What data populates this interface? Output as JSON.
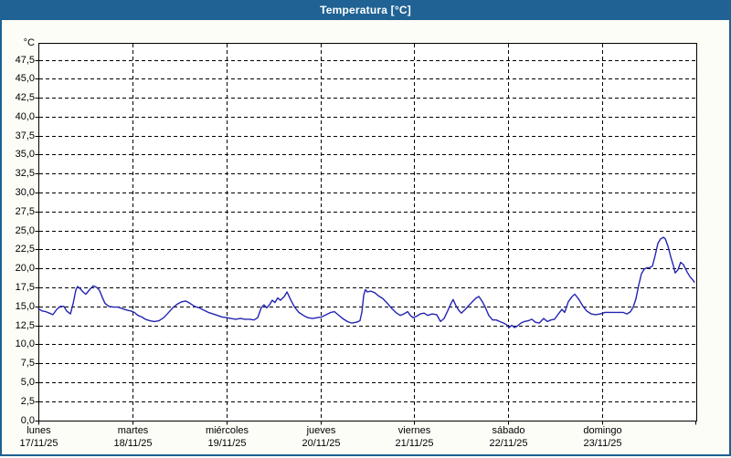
{
  "window": {
    "title": "Temperatura [°C]",
    "titlebar_color": "#1f6293",
    "border_color": "#1d6191",
    "background": "#fdfdf8"
  },
  "chart_data": {
    "type": "line",
    "title": "Temperatura [°C]",
    "unit_label": "°C",
    "legend": "none",
    "grid": "dashed",
    "plot_background": "#ffffff",
    "line_color": "#2424b2",
    "y_axis": {
      "min": 0,
      "max": 49.7,
      "tick_step": 2.5,
      "tick_labels_top_to_bottom": [
        "47,5",
        "45,0",
        "42,5",
        "40,0",
        "37,5",
        "35,0",
        "32,5",
        "30,0",
        "27,5",
        "25,0",
        "22,5",
        "20,0",
        "17,5",
        "15,0",
        "12,5",
        "10,0",
        "7,5",
        "5,0",
        "2,5",
        "0,0"
      ]
    },
    "x_axis": {
      "range_hours": [
        0,
        168
      ],
      "days": [
        {
          "name": "lunes",
          "date": "17/11/25"
        },
        {
          "name": "martes",
          "date": "18/11/25"
        },
        {
          "name": "miércoles",
          "date": "19/11/25"
        },
        {
          "name": "jueves",
          "date": "20/11/25"
        },
        {
          "name": "viernes",
          "date": "21/11/25"
        },
        {
          "name": "sábado",
          "date": "22/11/25"
        },
        {
          "name": "domingo",
          "date": "23/11/25"
        }
      ]
    },
    "series": [
      {
        "name": "Temperatura",
        "unit": "°C",
        "points_hour_temp": [
          [
            0.0,
            14.7
          ],
          [
            0.9,
            14.4
          ],
          [
            1.9,
            14.3
          ],
          [
            2.8,
            14.1
          ],
          [
            3.7,
            13.9
          ],
          [
            4.7,
            14.6
          ],
          [
            5.6,
            15.0
          ],
          [
            6.5,
            15.0
          ],
          [
            7.2,
            14.4
          ],
          [
            8.2,
            14.0
          ],
          [
            8.9,
            15.4
          ],
          [
            9.6,
            17.2
          ],
          [
            10.0,
            17.6
          ],
          [
            10.7,
            17.3
          ],
          [
            11.4,
            16.9
          ],
          [
            12.1,
            16.6
          ],
          [
            13.1,
            17.2
          ],
          [
            14.0,
            17.7
          ],
          [
            14.9,
            17.5
          ],
          [
            15.6,
            17.1
          ],
          [
            16.3,
            16.2
          ],
          [
            17.0,
            15.4
          ],
          [
            18.0,
            15.0
          ],
          [
            19.1,
            14.9
          ],
          [
            20.3,
            14.9
          ],
          [
            21.5,
            14.7
          ],
          [
            22.6,
            14.5
          ],
          [
            23.6,
            14.4
          ],
          [
            24.5,
            14.2
          ],
          [
            25.4,
            13.8
          ],
          [
            26.4,
            13.6
          ],
          [
            27.3,
            13.3
          ],
          [
            28.5,
            13.1
          ],
          [
            29.6,
            13.0
          ],
          [
            30.8,
            13.1
          ],
          [
            32.0,
            13.5
          ],
          [
            33.1,
            14.1
          ],
          [
            34.3,
            14.8
          ],
          [
            35.5,
            15.3
          ],
          [
            36.6,
            15.6
          ],
          [
            37.6,
            15.7
          ],
          [
            38.7,
            15.4
          ],
          [
            39.9,
            15.0
          ],
          [
            41.1,
            14.8
          ],
          [
            42.2,
            14.5
          ],
          [
            43.4,
            14.2
          ],
          [
            44.6,
            14.0
          ],
          [
            45.7,
            13.8
          ],
          [
            46.9,
            13.6
          ],
          [
            48.1,
            13.5
          ],
          [
            49.2,
            13.4
          ],
          [
            50.4,
            13.3
          ],
          [
            51.6,
            13.4
          ],
          [
            52.7,
            13.3
          ],
          [
            53.9,
            13.3
          ],
          [
            55.1,
            13.2
          ],
          [
            56.0,
            13.5
          ],
          [
            56.9,
            14.8
          ],
          [
            57.6,
            15.2
          ],
          [
            58.3,
            14.8
          ],
          [
            59.0,
            15.2
          ],
          [
            59.7,
            15.8
          ],
          [
            60.4,
            15.5
          ],
          [
            61.1,
            16.1
          ],
          [
            61.8,
            15.8
          ],
          [
            62.8,
            16.3
          ],
          [
            63.5,
            16.9
          ],
          [
            64.4,
            15.9
          ],
          [
            65.3,
            15.0
          ],
          [
            66.5,
            14.2
          ],
          [
            67.7,
            13.8
          ],
          [
            68.8,
            13.5
          ],
          [
            70.0,
            13.4
          ],
          [
            71.2,
            13.5
          ],
          [
            72.3,
            13.6
          ],
          [
            73.5,
            13.9
          ],
          [
            74.7,
            14.2
          ],
          [
            75.6,
            14.3
          ],
          [
            76.5,
            13.9
          ],
          [
            77.7,
            13.4
          ],
          [
            78.9,
            13.0
          ],
          [
            80.0,
            12.8
          ],
          [
            81.2,
            12.9
          ],
          [
            82.1,
            13.1
          ],
          [
            82.6,
            14.2
          ],
          [
            83.1,
            16.5
          ],
          [
            83.5,
            17.2
          ],
          [
            84.0,
            16.9
          ],
          [
            84.9,
            17.0
          ],
          [
            85.9,
            16.8
          ],
          [
            86.8,
            16.4
          ],
          [
            88.0,
            16.0
          ],
          [
            89.1,
            15.4
          ],
          [
            90.3,
            14.7
          ],
          [
            91.5,
            14.1
          ],
          [
            92.4,
            13.8
          ],
          [
            93.3,
            14.0
          ],
          [
            94.3,
            14.3
          ],
          [
            95.0,
            13.8
          ],
          [
            95.7,
            13.5
          ],
          [
            96.6,
            13.7
          ],
          [
            97.5,
            14.0
          ],
          [
            98.5,
            14.1
          ],
          [
            99.4,
            13.8
          ],
          [
            100.6,
            14.0
          ],
          [
            101.7,
            13.9
          ],
          [
            102.7,
            13.0
          ],
          [
            103.6,
            13.4
          ],
          [
            104.5,
            14.4
          ],
          [
            105.5,
            15.5
          ],
          [
            105.9,
            15.9
          ],
          [
            106.6,
            15.1
          ],
          [
            107.3,
            14.5
          ],
          [
            108.0,
            14.1
          ],
          [
            109.0,
            14.6
          ],
          [
            109.9,
            15.1
          ],
          [
            110.8,
            15.6
          ],
          [
            111.8,
            16.1
          ],
          [
            112.5,
            16.3
          ],
          [
            113.4,
            15.6
          ],
          [
            114.1,
            14.9
          ],
          [
            115.0,
            13.8
          ],
          [
            116.0,
            13.2
          ],
          [
            116.9,
            13.2
          ],
          [
            117.8,
            13.0
          ],
          [
            118.8,
            12.8
          ],
          [
            119.5,
            12.6
          ],
          [
            120.2,
            12.2
          ],
          [
            120.9,
            12.5
          ],
          [
            121.6,
            12.2
          ],
          [
            122.3,
            12.4
          ],
          [
            123.2,
            12.8
          ],
          [
            124.1,
            13.0
          ],
          [
            125.1,
            13.1
          ],
          [
            126.0,
            13.3
          ],
          [
            126.9,
            12.9
          ],
          [
            127.9,
            12.8
          ],
          [
            129.0,
            13.4
          ],
          [
            130.0,
            13.0
          ],
          [
            130.9,
            13.2
          ],
          [
            131.8,
            13.3
          ],
          [
            132.8,
            14.0
          ],
          [
            133.7,
            14.6
          ],
          [
            134.4,
            14.2
          ],
          [
            135.3,
            15.6
          ],
          [
            136.3,
            16.3
          ],
          [
            137.0,
            16.6
          ],
          [
            137.9,
            16.0
          ],
          [
            139.1,
            15.0
          ],
          [
            140.0,
            14.4
          ],
          [
            141.2,
            14.0
          ],
          [
            142.3,
            13.9
          ],
          [
            143.5,
            14.0
          ],
          [
            144.7,
            14.2
          ],
          [
            145.8,
            14.2
          ],
          [
            147.0,
            14.2
          ],
          [
            148.2,
            14.2
          ],
          [
            149.3,
            14.2
          ],
          [
            150.3,
            14.0
          ],
          [
            151.2,
            14.3
          ],
          [
            151.9,
            14.9
          ],
          [
            152.6,
            16.0
          ],
          [
            153.3,
            17.8
          ],
          [
            154.0,
            19.3
          ],
          [
            154.7,
            19.9
          ],
          [
            155.4,
            20.1
          ],
          [
            156.1,
            20.1
          ],
          [
            156.8,
            20.3
          ],
          [
            157.5,
            21.7
          ],
          [
            158.2,
            23.3
          ],
          [
            158.9,
            23.9
          ],
          [
            159.6,
            24.1
          ],
          [
            160.1,
            23.9
          ],
          [
            160.8,
            22.9
          ],
          [
            161.5,
            21.5
          ],
          [
            162.2,
            20.3
          ],
          [
            162.6,
            19.4
          ],
          [
            163.3,
            19.8
          ],
          [
            164.0,
            20.8
          ],
          [
            164.7,
            20.5
          ],
          [
            165.7,
            19.5
          ],
          [
            166.4,
            18.9
          ],
          [
            167.1,
            18.5
          ],
          [
            167.5,
            18.2
          ]
        ]
      }
    ]
  }
}
